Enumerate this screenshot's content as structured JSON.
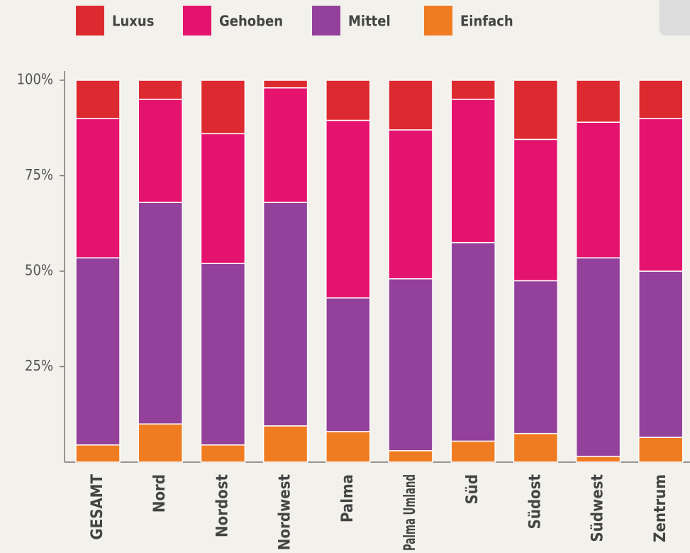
{
  "chart_data": {
    "type": "stacked_bar",
    "categories": [
      "GESAMT",
      "Nord",
      "Nordost",
      "Nordwest",
      "Palma",
      "Palma Umland",
      "Süd",
      "Südost",
      "Südwest",
      "Zentrum"
    ],
    "series": [
      {
        "name": "Einfach",
        "color": "#f07c22",
        "values": [
          4.5,
          10,
          4.5,
          9.5,
          8,
          3,
          5.5,
          7.5,
          1.5,
          6.5
        ]
      },
      {
        "name": "Mittel",
        "color": "#93419a",
        "values": [
          49,
          58,
          47.5,
          58.5,
          35,
          45,
          52,
          40,
          52,
          43.5
        ]
      },
      {
        "name": "Gehoben",
        "color": "#e4136e",
        "values": [
          36.5,
          27,
          34,
          30,
          46.5,
          39,
          37.5,
          37,
          35.5,
          40
        ]
      },
      {
        "name": "Luxus",
        "color": "#dc2a30",
        "values": [
          10,
          5,
          14,
          2,
          10.5,
          13,
          5,
          15.5,
          11,
          10
        ]
      }
    ],
    "legend_order": [
      "Luxus",
      "Gehoben",
      "Mittel",
      "Einfach"
    ],
    "ylim": [
      0,
      100
    ],
    "yticks": [
      {
        "value": 25,
        "label": "25%"
      },
      {
        "value": 50,
        "label": "50%"
      },
      {
        "value": 75,
        "label": "75%"
      },
      {
        "value": 100,
        "label": "100%"
      }
    ]
  }
}
